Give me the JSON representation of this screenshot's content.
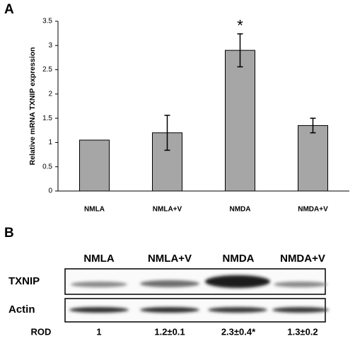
{
  "panel_a": "A",
  "chart_data": {
    "type": "bar",
    "y_label": "Relative mRNA TXNIP expression",
    "categories": [
      "NMLA",
      "NMLA+V",
      "NMDA",
      "NMDA+V"
    ],
    "values": [
      1.05,
      1.2,
      2.9,
      1.35
    ],
    "errors": [
      null,
      0.36,
      0.34,
      0.15
    ],
    "annotations": [
      {
        "text": "*",
        "category": "NMDA"
      }
    ],
    "color": "#a6a6a6",
    "ylim": [
      0,
      3.5
    ],
    "yticks": [
      0,
      0.5,
      1,
      1.5,
      2,
      2.5,
      3,
      3.5
    ],
    "grid": false
  },
  "panel_b": "B",
  "blot": {
    "lanes": [
      "NMLA",
      "NMLA+V",
      "NMDA",
      "NMDA+V"
    ],
    "rows": [
      "TXNIP",
      "Actin"
    ],
    "rod_label": "ROD",
    "rod": [
      "1",
      "1.2±0.1",
      "2.3±0.4*",
      "1.3±0.2"
    ]
  }
}
